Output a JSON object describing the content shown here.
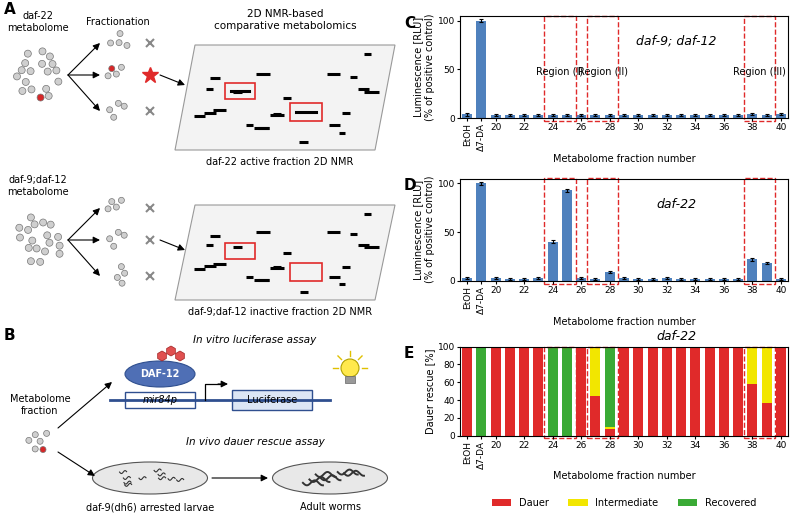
{
  "diagram": {
    "A": {
      "panel_label": "A",
      "fractionation": "Fractionation",
      "method": "2D NMR-based\ncomparative metabolomics",
      "active": {
        "metabolome": "daf-22\nmetabolome",
        "spectrum": "daf-22 active fraction 2D NMR"
      },
      "inactive": {
        "metabolome": "daf-9;daf-12\nmetabolome",
        "spectrum": "daf-9;daf-12 inactive fraction 2D NMR"
      }
    },
    "B": {
      "panel_label": "B",
      "input": "Metabolome\nfraction",
      "in_vitro": {
        "title": "In vitro luciferase assay",
        "receptor": "DAF-12",
        "promoter": "mir84p",
        "reporter": "Luciferase"
      },
      "in_vivo": {
        "title": "In vivo dauer rescue assay",
        "start": "daf-9(dh6) arrested larvae",
        "end": "Adult worms"
      }
    }
  },
  "chart_data": [
    {
      "panel_label": "C",
      "type": "bar",
      "title": "daf-9; daf-12",
      "y_label": "Luminescence [RLU]\n(% of positive control)",
      "x_label": "Metabolome fraction number",
      "categories": [
        "EtOH",
        "Δ7-DA",
        "20",
        null,
        "22",
        null,
        "24",
        null,
        "26",
        null,
        "28",
        null,
        "30",
        null,
        "32",
        null,
        "34",
        null,
        "36",
        null,
        "38",
        null,
        "40"
      ],
      "values": [
        4,
        100,
        3,
        3,
        3,
        3,
        3,
        3,
        3,
        3,
        3,
        3,
        3,
        3,
        3,
        3,
        3,
        3,
        3,
        3,
        4,
        3,
        4
      ],
      "errors": [
        1.5,
        1.5,
        1,
        1,
        1,
        1,
        1,
        1,
        1,
        1,
        1,
        1,
        1,
        1,
        1,
        1,
        1,
        1,
        1,
        1,
        1,
        1,
        1
      ],
      "color": "#4f81bd",
      "ylim": [
        0,
        105
      ],
      "yticks": [
        0,
        50,
        100
      ],
      "regions": [
        {
          "label": "Region (I)",
          "bars": [
            6,
            7
          ]
        },
        {
          "label": "Region (II)",
          "bars": [
            9,
            10
          ]
        },
        {
          "label": "Region (III)",
          "bars": [
            20,
            21
          ]
        }
      ]
    },
    {
      "panel_label": "D",
      "type": "bar",
      "title": "daf-22",
      "y_label": "Luminescence [RLU]\n(% of positive control)",
      "x_label": "Metabolome fraction number",
      "categories": [
        "EtOH",
        "Δ7-DA",
        "20",
        null,
        "22",
        null,
        "24",
        null,
        "26",
        null,
        "28",
        null,
        "30",
        null,
        "32",
        null,
        "34",
        null,
        "36",
        null,
        "38",
        null,
        "40"
      ],
      "values": [
        3,
        100,
        3,
        2,
        2,
        3,
        40,
        93,
        3,
        2,
        9,
        3,
        2,
        2,
        3,
        2,
        2,
        2,
        2,
        2,
        22,
        18,
        2
      ],
      "errors": [
        1,
        1.5,
        1,
        1,
        1,
        1,
        1.5,
        1.5,
        1,
        1,
        1,
        1,
        1,
        1,
        1,
        1,
        1,
        1,
        1,
        1,
        1.2,
        1.2,
        1
      ],
      "color": "#4f81bd",
      "ylim": [
        0,
        105
      ],
      "yticks": [
        0,
        50,
        100
      ]
    },
    {
      "panel_label": "E",
      "type": "bar",
      "stacked": true,
      "title": "daf-22",
      "y_label": "Dauer rescue [%]",
      "x_label": "Metabolome fraction number",
      "categories": [
        "EtOH",
        "Δ7-DA",
        "20",
        null,
        "22",
        null,
        "24",
        null,
        "26",
        null,
        "28",
        null,
        "30",
        null,
        "32",
        null,
        "34",
        null,
        "36",
        null,
        "38",
        null,
        "40"
      ],
      "series": [
        {
          "name": "Dauer",
          "color": "#e02a2a",
          "values": [
            100,
            0,
            100,
            100,
            100,
            100,
            0,
            0,
            100,
            45,
            8,
            100,
            100,
            100,
            100,
            100,
            100,
            100,
            100,
            100,
            58,
            37,
            100
          ]
        },
        {
          "name": "Intermediate",
          "color": "#f2e600",
          "values": [
            0,
            0,
            0,
            0,
            0,
            0,
            0,
            0,
            0,
            55,
            2,
            0,
            0,
            0,
            0,
            0,
            0,
            0,
            0,
            0,
            42,
            63,
            0
          ]
        },
        {
          "name": "Recovered",
          "color": "#3aaa35",
          "values": [
            0,
            100,
            0,
            0,
            0,
            0,
            100,
            100,
            0,
            0,
            90,
            0,
            0,
            0,
            0,
            0,
            0,
            0,
            0,
            0,
            0,
            0,
            0
          ]
        }
      ],
      "ylim": [
        0,
        100
      ],
      "yticks": [
        0,
        20,
        40,
        60,
        80,
        100
      ],
      "legend": "upper center"
    }
  ]
}
